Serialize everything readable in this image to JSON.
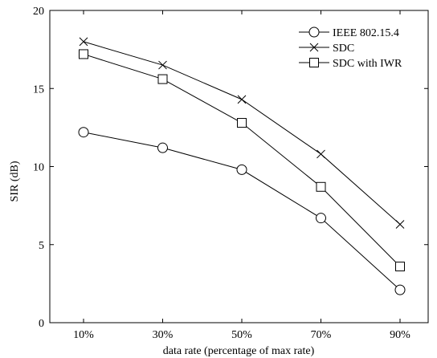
{
  "chart_data": {
    "type": "line",
    "title": "",
    "xlabel": "data rate (percentage of max rate)",
    "ylabel": "SIR (dB)",
    "categories": [
      "10%",
      "30%",
      "50%",
      "70%",
      "90%"
    ],
    "ylim": [
      0,
      20
    ],
    "yticks": [
      0,
      5,
      10,
      15,
      20
    ],
    "grid": false,
    "legend_position": "top-right",
    "line_color": "#000000",
    "series": [
      {
        "name": "IEEE 802.15.4",
        "marker": "circle",
        "values": [
          12.2,
          11.2,
          9.8,
          6.7,
          2.1
        ]
      },
      {
        "name": "SDC",
        "marker": "cross",
        "values": [
          18.0,
          16.5,
          14.3,
          10.8,
          6.3
        ]
      },
      {
        "name": "SDC with IWR",
        "marker": "square",
        "values": [
          17.2,
          15.6,
          12.8,
          8.7,
          3.6
        ]
      }
    ]
  }
}
